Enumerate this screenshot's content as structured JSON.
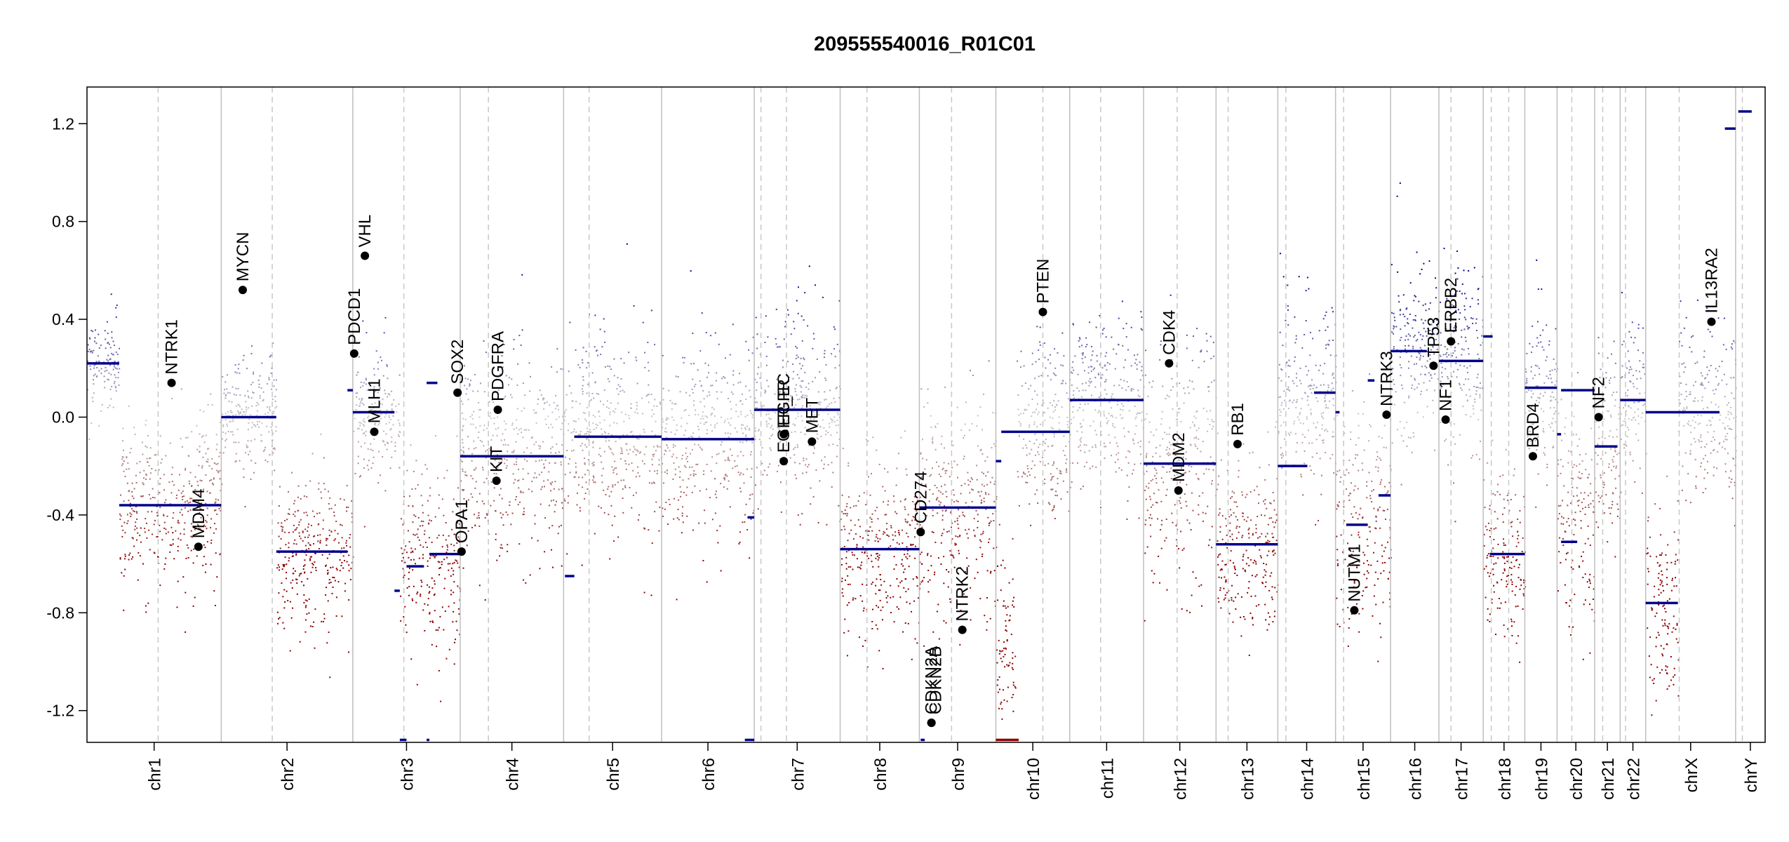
{
  "chart_data": {
    "type": "scatter",
    "title": "209555540016_R01C01",
    "xlabel": "",
    "ylabel": "",
    "ylim": [
      -1.33,
      1.35
    ],
    "yticks": [
      -1.2,
      -0.8,
      -0.4,
      0.0,
      0.4,
      0.8,
      1.2
    ],
    "ytick_labels": [
      "-1.2",
      "-0.8",
      "-0.4",
      "0.0",
      "0.4",
      "0.8",
      "1.2"
    ],
    "grid": false,
    "colors": {
      "gain": "#00008B",
      "loss": "#8B0000",
      "neutral": "#C8C8C8",
      "segment": "#00008B",
      "segment_low": "#8B0000",
      "divider": "#BEBEBE"
    },
    "chromosomes": [
      {
        "name": "chr1",
        "start": 0.0,
        "end": 1.0
      },
      {
        "name": "chr2",
        "start": 1.0,
        "end": 1.98
      },
      {
        "name": "chr3",
        "start": 1.98,
        "end": 2.78
      },
      {
        "name": "chr4",
        "start": 2.78,
        "end": 3.55
      },
      {
        "name": "chr5",
        "start": 3.55,
        "end": 4.28
      },
      {
        "name": "chr6",
        "start": 4.28,
        "end": 4.97
      },
      {
        "name": "chr7",
        "start": 4.97,
        "end": 5.61
      },
      {
        "name": "chr8",
        "start": 5.61,
        "end": 6.2
      },
      {
        "name": "chr9",
        "start": 6.2,
        "end": 6.77
      },
      {
        "name": "chr10",
        "start": 6.77,
        "end": 7.32
      },
      {
        "name": "chr11",
        "start": 7.32,
        "end": 7.87
      },
      {
        "name": "chr12",
        "start": 7.87,
        "end": 8.41
      },
      {
        "name": "chr13",
        "start": 8.41,
        "end": 8.87
      },
      {
        "name": "chr14",
        "start": 8.87,
        "end": 9.3
      },
      {
        "name": "chr15",
        "start": 9.3,
        "end": 9.71
      },
      {
        "name": "chr16",
        "start": 9.71,
        "end": 10.07
      },
      {
        "name": "chr17",
        "start": 10.07,
        "end": 10.4
      },
      {
        "name": "chr18",
        "start": 10.4,
        "end": 10.71
      },
      {
        "name": "chr19",
        "start": 10.71,
        "end": 10.95
      },
      {
        "name": "chr20",
        "start": 10.95,
        "end": 11.23
      },
      {
        "name": "chr21",
        "start": 11.23,
        "end": 11.42
      },
      {
        "name": "chr22",
        "start": 11.42,
        "end": 11.61
      },
      {
        "name": "chrX",
        "start": 11.61,
        "end": 12.28
      },
      {
        "name": "chrY",
        "start": 12.28,
        "end": 12.5
      }
    ],
    "centromeres": [
      0.53,
      1.38,
      2.36,
      2.99,
      3.74,
      5.02,
      5.21,
      5.81,
      6.44,
      7.12,
      7.55,
      8.12,
      8.5,
      8.93,
      9.36,
      10.16,
      10.46,
      10.59,
      11.06,
      11.29,
      11.46,
      11.86,
      12.33
    ],
    "segments": [
      {
        "x0": 0.0,
        "x1": 0.24,
        "y": 0.22
      },
      {
        "x0": 0.24,
        "x1": 1.0,
        "y": -0.36
      },
      {
        "x0": 1.0,
        "x1": 1.41,
        "y": 0.0
      },
      {
        "x0": 1.41,
        "x1": 1.94,
        "y": -0.55
      },
      {
        "x0": 1.94,
        "x1": 1.98,
        "y": 0.11
      },
      {
        "x0": 1.98,
        "x1": 2.29,
        "y": 0.02
      },
      {
        "x0": 2.29,
        "x1": 2.33,
        "y": -0.71
      },
      {
        "x0": 2.33,
        "x1": 2.38,
        "y": -1.32
      },
      {
        "x0": 2.38,
        "x1": 2.51,
        "y": -0.61
      },
      {
        "x0": 2.53,
        "x1": 2.61,
        "y": 0.14
      },
      {
        "x0": 2.55,
        "x1": 2.78,
        "y": -0.56
      },
      {
        "x0": 2.53,
        "x1": 2.55,
        "y": -1.32
      },
      {
        "x0": 2.78,
        "x1": 3.55,
        "y": -0.16
      },
      {
        "x0": 3.56,
        "x1": 3.63,
        "y": -0.65
      },
      {
        "x0": 3.63,
        "x1": 4.28,
        "y": -0.08
      },
      {
        "x0": 4.28,
        "x1": 4.97,
        "y": -0.09
      },
      {
        "x0": 4.92,
        "x1": 4.97,
        "y": -0.41
      },
      {
        "x0": 4.9,
        "x1": 4.97,
        "y": -1.32
      },
      {
        "x0": 4.97,
        "x1": 5.61,
        "y": 0.03
      },
      {
        "x0": 5.61,
        "x1": 6.2,
        "y": -0.54
      },
      {
        "x0": 6.2,
        "x1": 6.77,
        "y": -0.37
      },
      {
        "x0": 6.21,
        "x1": 6.24,
        "y": -1.32
      },
      {
        "x0": 6.77,
        "x1": 6.81,
        "y": -0.18
      },
      {
        "x0": 6.81,
        "x1": 7.32,
        "y": -0.06
      },
      {
        "x0": 6.77,
        "x1": 6.94,
        "y": -1.32
      },
      {
        "x0": 7.32,
        "x1": 7.87,
        "y": 0.07
      },
      {
        "x0": 7.87,
        "x1": 8.41,
        "y": -0.19
      },
      {
        "x0": 8.41,
        "x1": 8.87,
        "y": -0.52
      },
      {
        "x0": 8.87,
        "x1": 9.09,
        "y": -0.2
      },
      {
        "x0": 9.14,
        "x1": 9.3,
        "y": 0.1
      },
      {
        "x0": 9.3,
        "x1": 9.33,
        "y": 0.02
      },
      {
        "x0": 9.38,
        "x1": 9.54,
        "y": -0.44
      },
      {
        "x0": 9.54,
        "x1": 9.59,
        "y": 0.15
      },
      {
        "x0": 9.62,
        "x1": 9.71,
        "y": -0.32
      },
      {
        "x0": 9.71,
        "x1": 9.98,
        "y": 0.27
      },
      {
        "x0": 10.07,
        "x1": 10.4,
        "y": 0.23
      },
      {
        "x0": 10.4,
        "x1": 10.47,
        "y": 0.33
      },
      {
        "x0": 10.45,
        "x1": 10.71,
        "y": -0.56
      },
      {
        "x0": 10.71,
        "x1": 10.95,
        "y": 0.12
      },
      {
        "x0": 10.95,
        "x1": 10.98,
        "y": -0.07
      },
      {
        "x0": 10.98,
        "x1": 11.23,
        "y": 0.11
      },
      {
        "x0": 10.98,
        "x1": 11.1,
        "y": -0.51
      },
      {
        "x0": 11.23,
        "x1": 11.4,
        "y": -0.12
      },
      {
        "x0": 11.42,
        "x1": 11.61,
        "y": 0.07
      },
      {
        "x0": 11.61,
        "x1": 11.85,
        "y": -0.76
      },
      {
        "x0": 11.61,
        "x1": 12.16,
        "y": 0.02
      },
      {
        "x0": 12.2,
        "x1": 12.28,
        "y": 1.18
      },
      {
        "x0": 12.3,
        "x1": 12.4,
        "y": 1.25
      }
    ],
    "genes": [
      {
        "name": "NTRK1",
        "x": 0.63,
        "y": 0.14
      },
      {
        "name": "MDM4",
        "x": 0.83,
        "y": -0.53
      },
      {
        "name": "MYCN",
        "x": 1.16,
        "y": 0.52
      },
      {
        "name": "PDCD1",
        "x": 1.99,
        "y": 0.26
      },
      {
        "name": "VHL",
        "x": 2.07,
        "y": 0.66
      },
      {
        "name": "MLH1",
        "x": 2.14,
        "y": -0.06
      },
      {
        "name": "SOX2",
        "x": 2.76,
        "y": 0.1
      },
      {
        "name": "OPA1",
        "x": 2.79,
        "y": -0.55
      },
      {
        "name": "PDGFRA",
        "x": 3.06,
        "y": 0.03
      },
      {
        "name": "KIT",
        "x": 3.05,
        "y": -0.26
      },
      {
        "name": "EGFR",
        "x": 5.19,
        "y": -0.07
      },
      {
        "name": "EGFR_EC",
        "x": 5.19,
        "y": -0.18
      },
      {
        "name": "MET",
        "x": 5.4,
        "y": -0.1
      },
      {
        "name": "CD274",
        "x": 6.21,
        "y": -0.47
      },
      {
        "name": "CDKN2A",
        "x": 6.29,
        "y": -1.25
      },
      {
        "name": "CDKN2B",
        "x": 6.29,
        "y": -1.25
      },
      {
        "name": "NTRK2",
        "x": 6.52,
        "y": -0.87
      },
      {
        "name": "PTEN",
        "x": 7.12,
        "y": 0.43
      },
      {
        "name": "CDK4",
        "x": 8.06,
        "y": 0.22
      },
      {
        "name": "MDM2",
        "x": 8.13,
        "y": -0.3
      },
      {
        "name": "RB1",
        "x": 8.57,
        "y": -0.11
      },
      {
        "name": "NUTM1",
        "x": 9.44,
        "y": -0.79
      },
      {
        "name": "NTRK3",
        "x": 9.68,
        "y": 0.01
      },
      {
        "name": "TP53",
        "x": 10.03,
        "y": 0.21
      },
      {
        "name": "ERBB2",
        "x": 10.16,
        "y": 0.31
      },
      {
        "name": "NF1",
        "x": 10.12,
        "y": -0.01
      },
      {
        "name": "BRD4",
        "x": 10.77,
        "y": -0.16
      },
      {
        "name": "NF2",
        "x": 11.26,
        "y": 0.0
      },
      {
        "name": "IL13RA2",
        "x": 12.1,
        "y": 0.39
      }
    ],
    "regions": [
      {
        "chr": "chr1",
        "start": 0.0,
        "end": 0.24,
        "median": 0.22,
        "spread": 0.18
      },
      {
        "chr": "chr1",
        "start": 0.24,
        "end": 1.0,
        "median": -0.36,
        "spread": 0.32
      },
      {
        "chr": "chr2",
        "start": 1.0,
        "end": 1.41,
        "median": 0.0,
        "spread": 0.22
      },
      {
        "chr": "chr2",
        "start": 1.41,
        "end": 1.98,
        "median": -0.55,
        "spread": 0.28
      },
      {
        "chr": "chr3",
        "start": 1.98,
        "end": 2.33,
        "median": 0.02,
        "spread": 0.25
      },
      {
        "chr": "chr3",
        "start": 2.33,
        "end": 2.78,
        "median": -0.58,
        "spread": 0.35
      },
      {
        "chr": "chr4",
        "start": 2.78,
        "end": 3.55,
        "median": -0.16,
        "spread": 0.38
      },
      {
        "chr": "chr5",
        "start": 3.55,
        "end": 4.28,
        "median": -0.08,
        "spread": 0.38
      },
      {
        "chr": "chr6",
        "start": 4.28,
        "end": 4.97,
        "median": -0.09,
        "spread": 0.38
      },
      {
        "chr": "chr7",
        "start": 4.97,
        "end": 5.61,
        "median": 0.03,
        "spread": 0.36
      },
      {
        "chr": "chr8",
        "start": 5.61,
        "end": 6.2,
        "median": -0.54,
        "spread": 0.32
      },
      {
        "chr": "chr9",
        "start": 6.2,
        "end": 6.77,
        "median": -0.37,
        "spread": 0.4
      },
      {
        "chr": "chr10",
        "start": 6.77,
        "end": 6.92,
        "median": -0.9,
        "spread": 0.3
      },
      {
        "chr": "chr10",
        "start": 6.92,
        "end": 7.32,
        "median": -0.06,
        "spread": 0.35
      },
      {
        "chr": "chr11",
        "start": 7.32,
        "end": 7.87,
        "median": 0.07,
        "spread": 0.3
      },
      {
        "chr": "chr12",
        "start": 7.87,
        "end": 8.41,
        "median": -0.19,
        "spread": 0.45
      },
      {
        "chr": "chr13",
        "start": 8.41,
        "end": 8.87,
        "median": -0.52,
        "spread": 0.35
      },
      {
        "chr": "chr14",
        "start": 8.87,
        "end": 9.3,
        "median": 0.1,
        "spread": 0.35
      },
      {
        "chr": "chr15",
        "start": 9.3,
        "end": 9.71,
        "median": -0.44,
        "spread": 0.4
      },
      {
        "chr": "chr16",
        "start": 9.71,
        "end": 10.07,
        "median": 0.27,
        "spread": 0.35
      },
      {
        "chr": "chr17",
        "start": 10.07,
        "end": 10.4,
        "median": 0.23,
        "spread": 0.35
      },
      {
        "chr": "chr18",
        "start": 10.4,
        "end": 10.71,
        "median": -0.56,
        "spread": 0.33
      },
      {
        "chr": "chr19",
        "start": 10.71,
        "end": 10.95,
        "median": 0.12,
        "spread": 0.3
      },
      {
        "chr": "chr20",
        "start": 10.95,
        "end": 11.23,
        "median": -0.4,
        "spread": 0.45
      },
      {
        "chr": "chr21",
        "start": 11.23,
        "end": 11.42,
        "median": -0.12,
        "spread": 0.3
      },
      {
        "chr": "chr22",
        "start": 11.42,
        "end": 11.61,
        "median": 0.07,
        "spread": 0.3
      },
      {
        "chr": "chrX",
        "start": 11.61,
        "end": 11.85,
        "median": -0.76,
        "spread": 0.33
      },
      {
        "chr": "chrX",
        "start": 11.85,
        "end": 12.28,
        "median": 0.02,
        "spread": 0.3
      }
    ]
  }
}
